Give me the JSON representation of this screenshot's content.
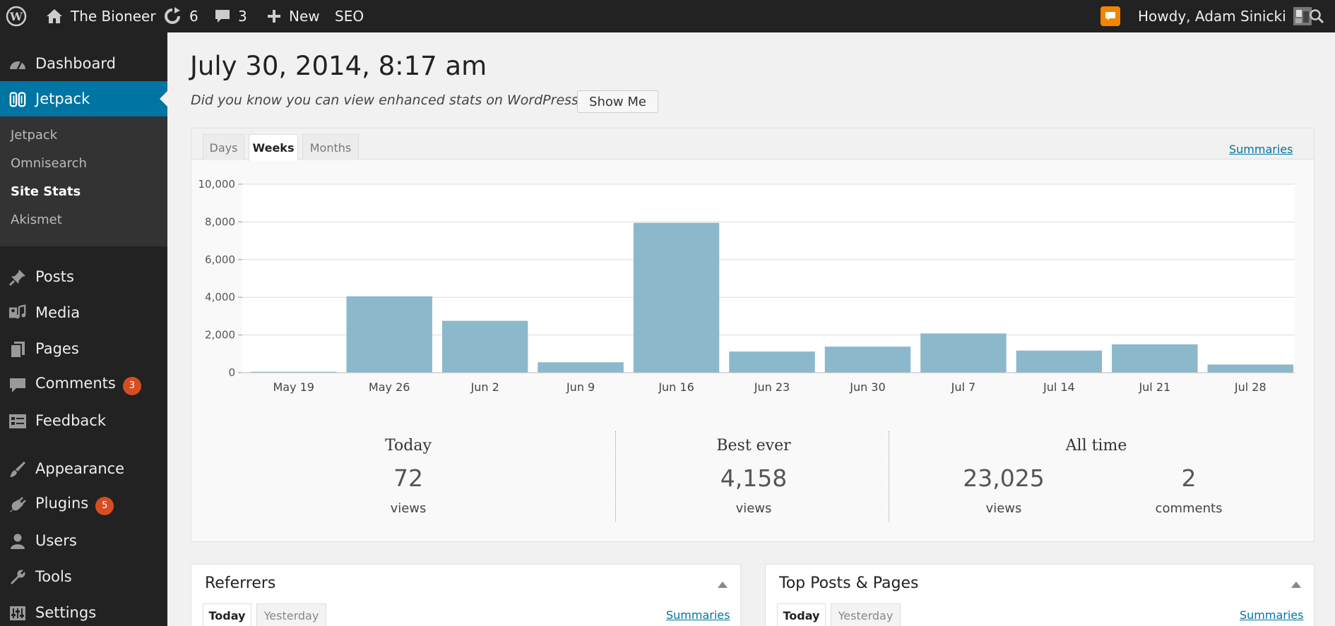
{
  "admin_bar": {
    "site_name": "The Bioneer",
    "updates_count": "6",
    "comments_count": "3",
    "new_label": "New",
    "seo_label": "SEO",
    "greeting": "Howdy, Adam Sinicki"
  },
  "sidebar": {
    "items": [
      {
        "label": "Dashboard",
        "icon": "dashboard-icon"
      },
      {
        "label": "Jetpack",
        "icon": "jetpack-icon",
        "active": true
      },
      {
        "label": "Posts",
        "icon": "pin-icon"
      },
      {
        "label": "Media",
        "icon": "media-icon"
      },
      {
        "label": "Pages",
        "icon": "pages-icon"
      },
      {
        "label": "Comments",
        "icon": "comment-icon",
        "badge": "3"
      },
      {
        "label": "Feedback",
        "icon": "feedback-icon"
      },
      {
        "label": "Appearance",
        "icon": "brush-icon"
      },
      {
        "label": "Plugins",
        "icon": "plug-icon",
        "badge": "5"
      },
      {
        "label": "Users",
        "icon": "user-icon"
      },
      {
        "label": "Tools",
        "icon": "wrench-icon"
      },
      {
        "label": "Settings",
        "icon": "settings-icon"
      }
    ],
    "submenu": [
      "Jetpack",
      "Omnisearch",
      "Site Stats",
      "Akismet"
    ],
    "submenu_current": "Site Stats"
  },
  "main": {
    "title": "July 30, 2014, 8:17 am",
    "notice": "Did you know you can view enhanced stats on WordPress.com?",
    "show_me_label": "Show Me",
    "tabs": [
      "Days",
      "Weeks",
      "Months"
    ],
    "active_tab": "Weeks",
    "summaries_label": "Summaries"
  },
  "chart_data": {
    "type": "bar",
    "categories": [
      "May 19",
      "May 26",
      "Jun 2",
      "Jun 9",
      "Jun 16",
      "Jun 23",
      "Jun 30",
      "Jul 7",
      "Jul 14",
      "Jul 21",
      "Jul 28"
    ],
    "values": [
      50,
      4050,
      2750,
      550,
      7950,
      1120,
      1380,
      2080,
      1170,
      1500,
      430
    ],
    "ylim": [
      0,
      10000
    ],
    "yticks": [
      "0",
      "2,000",
      "4,000",
      "6,000",
      "8,000",
      "10,000"
    ],
    "color": "#8cb8cc",
    "grid": true
  },
  "summary": {
    "today": {
      "heading": "Today",
      "value": "72",
      "label": "views"
    },
    "best": {
      "heading": "Best ever",
      "value": "4,158",
      "label": "views"
    },
    "all_time": {
      "heading": "All time",
      "views_value": "23,025",
      "views_label": "views",
      "comments_value": "2",
      "comments_label": "comments"
    }
  },
  "panels": {
    "referrers": {
      "title": "Referrers",
      "tabs": [
        "Today",
        "Yesterday"
      ],
      "summaries": "Summaries"
    },
    "top_posts": {
      "title": "Top Posts & Pages",
      "tabs": [
        "Today",
        "Yesterday"
      ],
      "summaries": "Summaries"
    }
  }
}
